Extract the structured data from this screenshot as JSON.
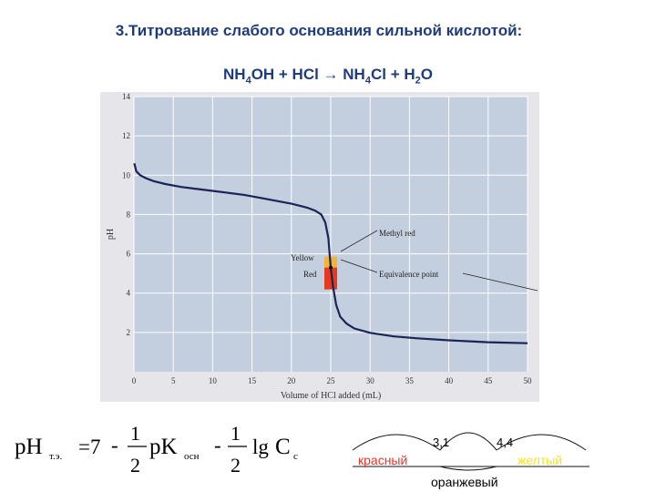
{
  "title": "3.Титрование слабого основания сильной кислотой:",
  "equation": {
    "p1": "NH",
    "s1": "4",
    "p2": "OH + HCl → NH",
    "s2": "4",
    "p3": "Cl + H",
    "s3": "2",
    "p4": "O"
  },
  "chart_data": {
    "type": "line",
    "xlabel": "Volume of HCl added (mL)",
    "ylabel": "pH",
    "xlim": [
      0,
      50
    ],
    "ylim": [
      0,
      14
    ],
    "xticks": [
      "0",
      "5",
      "10",
      "15",
      "20",
      "25",
      "30",
      "35",
      "40",
      "45",
      "50"
    ],
    "yticks": [
      "2",
      "4",
      "6",
      "8",
      "10",
      "12",
      "14"
    ],
    "grid": true,
    "series": [
      {
        "x": [
          0.05,
          0.3,
          0.8,
          1.5,
          2.5,
          4,
          6,
          8,
          10,
          12,
          14,
          16,
          18,
          20,
          21,
          22,
          23,
          23.8,
          24.3,
          24.7,
          25,
          25.3,
          25.7,
          26.2,
          27,
          28,
          30,
          33,
          36,
          40,
          45,
          50
        ],
        "y": [
          10.6,
          10.2,
          10.0,
          9.85,
          9.7,
          9.55,
          9.4,
          9.3,
          9.2,
          9.1,
          9.0,
          8.85,
          8.7,
          8.55,
          8.45,
          8.35,
          8.2,
          8.0,
          7.6,
          6.8,
          5.3,
          4.3,
          3.4,
          2.8,
          2.45,
          2.2,
          1.98,
          1.8,
          1.7,
          1.6,
          1.5,
          1.45
        ]
      }
    ],
    "equivalence_point": {
      "x": 25,
      "y": 5.3
    },
    "annotations": [
      "Yellow",
      "Red",
      "Methyl red",
      "Equivalence point"
    ],
    "indicator_colors": {
      "yellow": "#f2b53a",
      "red": "#e63a1e"
    }
  },
  "formula": {
    "ph": "pH",
    "ph_sub": "т.э.",
    "eq": "=7",
    "minus1": "-",
    "num1": "1",
    "den1": "2",
    "pk": "pK",
    "pk_sub": "осн",
    "minus2": "-",
    "num2": "1",
    "den2": "2",
    "lg": "lg",
    "c": "C",
    "c_sub": "с"
  },
  "scale": {
    "left_value": "3,1",
    "right_value": "4,4",
    "red_label": "красный",
    "yellow_label": "желтый",
    "orange_label": "оранжевый",
    "colors": {
      "red": "#e3372a",
      "yellow": "#f4e12a"
    }
  }
}
